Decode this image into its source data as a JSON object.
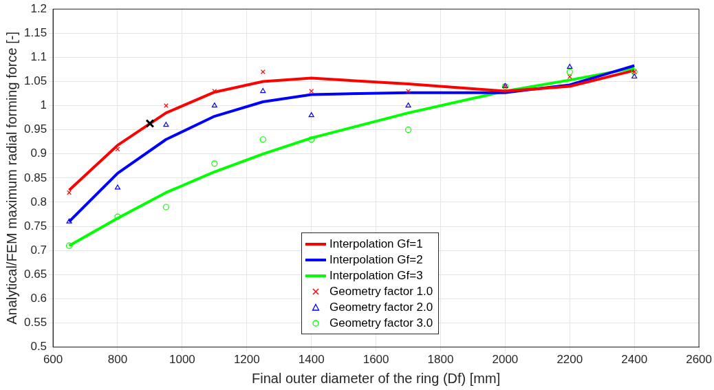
{
  "chart_data": {
    "type": "line",
    "xlabel": "Final outer diameter of the ring (Df) [mm]",
    "ylabel": "Analytical/FEM maximum radial forming force [-]",
    "x": [
      650,
      800,
      950,
      1100,
      1250,
      1400,
      1700,
      2000,
      2200,
      2400
    ],
    "series": [
      {
        "name": "Interpolation Gf=1",
        "color": "#ff0000",
        "marker": "none",
        "values": [
          0.825,
          0.918,
          0.985,
          1.028,
          1.05,
          1.057,
          1.045,
          1.03,
          1.04,
          1.073
        ]
      },
      {
        "name": "Interpolation Gf=2",
        "color": "#0000ff",
        "marker": "none",
        "values": [
          0.76,
          0.86,
          0.93,
          0.978,
          1.008,
          1.023,
          1.027,
          1.027,
          1.043,
          1.083
        ]
      },
      {
        "name": "Interpolation Gf=3",
        "color": "#00ff00",
        "marker": "none",
        "values": [
          0.71,
          0.767,
          0.82,
          0.863,
          0.9,
          0.933,
          0.985,
          1.03,
          1.053,
          1.078
        ]
      },
      {
        "name": "Geometry factor 1.0",
        "type": "scatter",
        "color": "#ff0000",
        "marker": "cross",
        "values": [
          0.82,
          0.91,
          1.0,
          1.03,
          1.07,
          1.03,
          1.03,
          1.04,
          1.06,
          1.07
        ]
      },
      {
        "name": "Geometry factor 2.0",
        "type": "scatter",
        "color": "#0000ff",
        "marker": "triangle",
        "values": [
          0.76,
          0.83,
          0.96,
          1.0,
          1.03,
          0.98,
          1.0,
          1.04,
          1.08,
          1.06
        ]
      },
      {
        "name": "Geometry factor 3.0",
        "type": "scatter",
        "color": "#00ff00",
        "marker": "circle",
        "values": [
          0.71,
          0.77,
          0.79,
          0.88,
          0.93,
          0.93,
          0.95,
          1.04,
          1.07,
          1.07
        ]
      },
      {
        "type": "scatter",
        "color": "#000000",
        "marker": "cross",
        "x": [
          900
        ],
        "values": [
          0.963
        ]
      }
    ],
    "xlim": [
      600,
      2600
    ],
    "xticks": [
      600,
      800,
      1000,
      1200,
      1400,
      1600,
      1800,
      2000,
      2200,
      2400,
      2600
    ],
    "ylim": [
      0.5,
      1.2
    ],
    "yticks": [
      0.5,
      0.55,
      0.6,
      0.65,
      0.7,
      0.75,
      0.8,
      0.85,
      0.9,
      0.95,
      1,
      1.05,
      1.1,
      1.15,
      1.2
    ],
    "grid": true,
    "legend": "bottom"
  }
}
